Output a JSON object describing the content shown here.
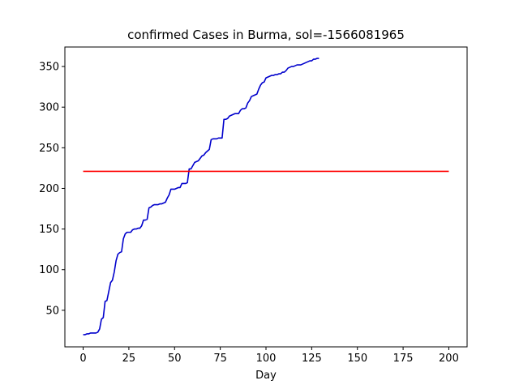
{
  "chart_data": {
    "type": "line",
    "title": "confirmed Cases in Burma, sol=-1566081965",
    "xlabel": "Day",
    "ylabel": "",
    "xlim": [
      -10,
      210
    ],
    "ylim": [
      5,
      374
    ],
    "x_ticks": [
      0,
      25,
      50,
      75,
      100,
      125,
      150,
      175,
      200
    ],
    "y_ticks": [
      50,
      100,
      150,
      200,
      250,
      300,
      350
    ],
    "grid": false,
    "legend": "none",
    "series": [
      {
        "color": "#0000cc",
        "x": [
          0,
          1,
          2,
          3,
          4,
          5,
          6,
          7,
          8,
          9,
          10,
          11,
          12,
          13,
          14,
          15,
          16,
          17,
          18,
          19,
          20,
          21,
          22,
          23,
          24,
          25,
          26,
          27,
          28,
          29,
          30,
          31,
          32,
          33,
          34,
          35,
          36,
          37,
          38,
          39,
          40,
          41,
          42,
          43,
          44,
          45,
          46,
          47,
          48,
          49,
          50,
          51,
          52,
          53,
          54,
          55,
          56,
          57,
          58,
          59,
          60,
          61,
          62,
          63,
          64,
          65,
          66,
          67,
          68,
          69,
          70,
          71,
          72,
          73,
          74,
          75,
          76,
          77,
          78,
          79,
          80,
          81,
          82,
          83,
          84,
          85,
          86,
          87,
          88,
          89,
          90,
          91,
          92,
          93,
          94,
          95,
          96,
          97,
          98,
          99,
          100,
          101,
          102,
          103,
          104,
          105,
          106,
          107,
          108,
          109,
          110,
          111,
          112,
          113,
          114,
          115,
          116,
          117,
          118,
          119,
          120,
          121,
          122,
          123,
          124,
          125,
          126,
          127,
          128,
          129
        ],
        "y": [
          20,
          20,
          21,
          21,
          22,
          22,
          22,
          22,
          23,
          27,
          39,
          41,
          61,
          62,
          73,
          84,
          87,
          97,
          111,
          119,
          121,
          122,
          138,
          144,
          146,
          146,
          146,
          149,
          150,
          150,
          151,
          151,
          154,
          161,
          161,
          162,
          176,
          177,
          179,
          180,
          180,
          180,
          181,
          181,
          182,
          183,
          188,
          192,
          199,
          199,
          199,
          200,
          201,
          201,
          206,
          206,
          206,
          207,
          224,
          224,
          228,
          232,
          233,
          234,
          237,
          240,
          241,
          244,
          246,
          248,
          260,
          261,
          261,
          261,
          262,
          262,
          262,
          285,
          285,
          286,
          289,
          290,
          291,
          292,
          292,
          292,
          296,
          298,
          298,
          299,
          305,
          308,
          313,
          314,
          315,
          316,
          322,
          327,
          330,
          331,
          336,
          337,
          338,
          339,
          339,
          340,
          340,
          341,
          341,
          343,
          343,
          345,
          348,
          349,
          350,
          350,
          351,
          352,
          352,
          352,
          353,
          354,
          355,
          356,
          357,
          357,
          359,
          359,
          360,
          360
        ]
      },
      {
        "color": "#ff0000",
        "x": [
          0,
          200
        ],
        "y": [
          221,
          221
        ]
      }
    ]
  }
}
